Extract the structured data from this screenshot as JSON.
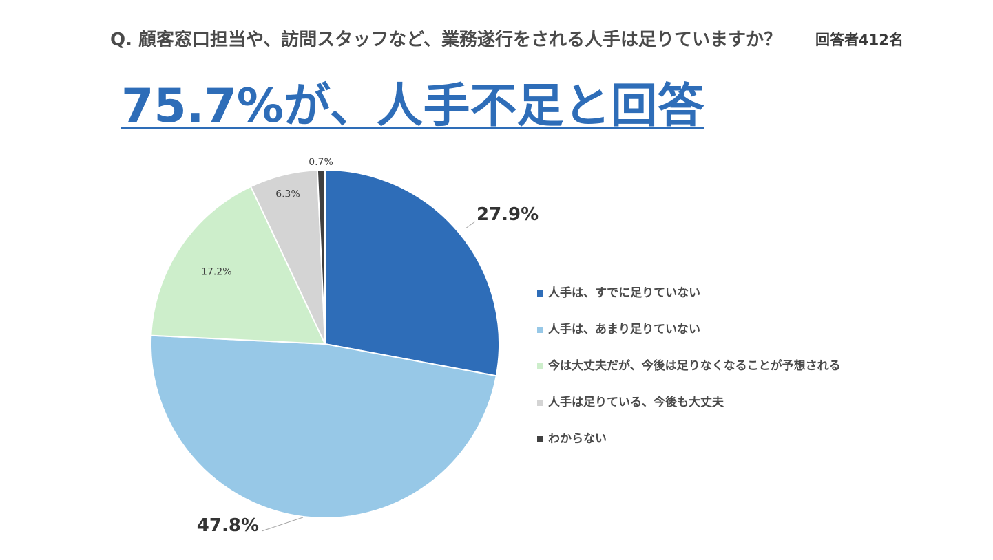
{
  "page": {
    "question": "Q. 顧客窓口担当や、訪問スタッフなど、業務遂行をされる人手は足りていますか？",
    "respondents": "回答者412名",
    "headline": "75.7%が、人手不足と回答"
  },
  "chart_data": {
    "type": "pie",
    "title": "",
    "legend_position": "right",
    "series": [
      {
        "name": "人手は、すでに足りていない",
        "value": 27.9,
        "label": "27.9%",
        "color": "#2e6db8"
      },
      {
        "name": "人手は、あまり足りていない",
        "value": 47.8,
        "label": "47.8%",
        "color": "#97c8e7"
      },
      {
        "name": "今は大丈夫だが、今後は足りなくなることが予想される",
        "value": 17.2,
        "label": "17.2%",
        "color": "#cdeecb"
      },
      {
        "name": "人手は足りている、今後も大丈夫",
        "value": 6.3,
        "label": "6.3%",
        "color": "#d4d4d4"
      },
      {
        "name": "わからない",
        "value": 0.7,
        "label": "0.7%",
        "color": "#404040"
      }
    ]
  }
}
